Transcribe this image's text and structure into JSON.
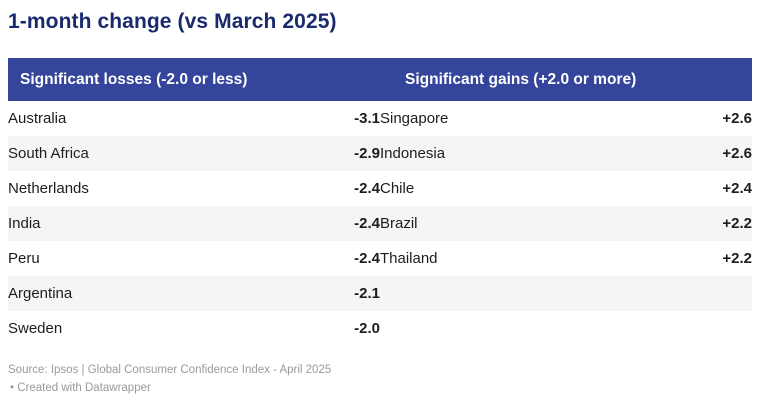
{
  "title": "1-month change (vs March 2025)",
  "table": {
    "header_losses": "Significant losses (-2.0 or less)",
    "header_gains": "Significant gains (+2.0 or more)",
    "rows": [
      {
        "loss_country": "Australia",
        "loss_value": "-3.1",
        "gain_country": "Singapore",
        "gain_value": "+2.6"
      },
      {
        "loss_country": "South Africa",
        "loss_value": "-2.9",
        "gain_country": "Indonesia",
        "gain_value": "+2.6"
      },
      {
        "loss_country": "Netherlands",
        "loss_value": "-2.4",
        "gain_country": "Chile",
        "gain_value": "+2.4"
      },
      {
        "loss_country": "India",
        "loss_value": "-2.4",
        "gain_country": "Brazil",
        "gain_value": "+2.2"
      },
      {
        "loss_country": "Peru",
        "loss_value": "-2.4",
        "gain_country": "Thailand",
        "gain_value": "+2.2"
      },
      {
        "loss_country": "Argentina",
        "loss_value": "-2.1",
        "gain_country": "",
        "gain_value": ""
      },
      {
        "loss_country": "Sweden",
        "loss_value": "-2.0",
        "gain_country": "",
        "gain_value": ""
      }
    ]
  },
  "footer": {
    "source_line": "Source: Ipsos | Global Consumer Confidence Index - April 2025",
    "attribution_line": "• Created with Datawrapper"
  },
  "colors": {
    "header_bg": "#35459c",
    "loss_value_text": "#d02a2a",
    "gain_value_text": "#0aa88c",
    "title_text": "#1a2a6e",
    "row_stripe": "#f5f5f5",
    "footer_text": "#9a9a9a"
  },
  "chart_data": {
    "type": "table",
    "title": "1-month change (vs March 2025)",
    "columns": [
      "Significant losses (-2.0 or less)",
      "Significant gains (+2.0 or more)"
    ],
    "losses": [
      {
        "country": "Australia",
        "value": -3.1
      },
      {
        "country": "South Africa",
        "value": -2.9
      },
      {
        "country": "Netherlands",
        "value": -2.4
      },
      {
        "country": "India",
        "value": -2.4
      },
      {
        "country": "Peru",
        "value": -2.4
      },
      {
        "country": "Argentina",
        "value": -2.1
      },
      {
        "country": "Sweden",
        "value": -2.0
      }
    ],
    "gains": [
      {
        "country": "Singapore",
        "value": 2.6
      },
      {
        "country": "Indonesia",
        "value": 2.6
      },
      {
        "country": "Chile",
        "value": 2.4
      },
      {
        "country": "Brazil",
        "value": 2.2
      },
      {
        "country": "Thailand",
        "value": 2.2
      }
    ],
    "source": "Ipsos | Global Consumer Confidence Index - April 2025",
    "created_with": "Datawrapper",
    "layout_hints": {
      "zebra_striping": true,
      "striped_rows": "even",
      "value_alignment": "right"
    }
  }
}
